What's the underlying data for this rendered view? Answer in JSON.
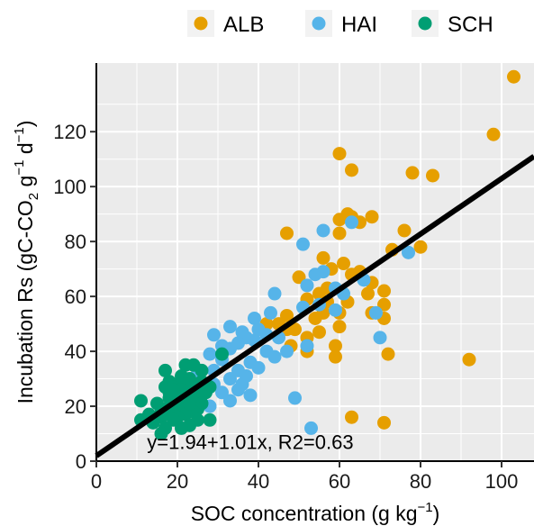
{
  "chart_data": {
    "type": "scatter",
    "xlabel": "SOC concentration (g kg",
    "xlabel_sup": "−1",
    "xlabel_end": ")",
    "ylabel": "Incubation Rs (gC-CO",
    "ylabel_sub": "2",
    "ylabel_mid1": " g",
    "ylabel_sup1": "−1",
    "ylabel_mid2": " d",
    "ylabel_sup2": "−1",
    "ylabel_end": ")",
    "xlim": [
      0,
      108
    ],
    "ylim": [
      0,
      145
    ],
    "xticks": [
      0,
      20,
      40,
      60,
      80,
      100
    ],
    "yticks": [
      0,
      20,
      40,
      60,
      80,
      100,
      120
    ],
    "grid": true,
    "legend_position": "top",
    "annotation": "y=1.94+1.01x, R2=0.63",
    "fit": {
      "intercept": 1.94,
      "slope": 1.01,
      "color": "#000000"
    },
    "series": [
      {
        "name": "ALB",
        "color": "#E69F00",
        "points": [
          [
            103,
            140
          ],
          [
            98,
            119
          ],
          [
            60,
            112
          ],
          [
            63,
            106
          ],
          [
            78,
            105
          ],
          [
            83,
            104
          ],
          [
            62,
            90
          ],
          [
            63,
            89
          ],
          [
            68,
            89
          ],
          [
            60,
            88
          ],
          [
            65,
            87
          ],
          [
            76,
            84
          ],
          [
            60,
            83
          ],
          [
            47,
            83
          ],
          [
            73,
            77
          ],
          [
            80,
            78
          ],
          [
            56,
            74
          ],
          [
            61,
            72
          ],
          [
            65,
            69
          ],
          [
            58,
            70
          ],
          [
            63,
            68
          ],
          [
            50,
            67
          ],
          [
            68,
            65
          ],
          [
            71,
            62
          ],
          [
            55,
            61
          ],
          [
            67,
            61
          ],
          [
            52,
            59
          ],
          [
            57,
            58
          ],
          [
            62,
            58
          ],
          [
            71,
            57
          ],
          [
            47,
            53
          ],
          [
            56,
            54
          ],
          [
            60,
            54
          ],
          [
            68,
            54
          ],
          [
            54,
            52
          ],
          [
            71,
            52
          ],
          [
            42,
            50
          ],
          [
            49,
            48
          ],
          [
            60,
            49
          ],
          [
            55,
            47
          ],
          [
            52,
            45
          ],
          [
            48,
            42
          ],
          [
            59,
            42
          ],
          [
            52,
            40
          ],
          [
            72,
            39
          ],
          [
            59,
            38
          ],
          [
            92,
            37
          ],
          [
            47,
            48
          ],
          [
            63,
            16
          ],
          [
            71,
            14
          ],
          [
            45,
            50
          ],
          [
            57,
            63
          ]
        ]
      },
      {
        "name": "HAI",
        "color": "#56B4E9",
        "points": [
          [
            63,
            87
          ],
          [
            56,
            84
          ],
          [
            51,
            79
          ],
          [
            77,
            76
          ],
          [
            56,
            69
          ],
          [
            54,
            68
          ],
          [
            66,
            66
          ],
          [
            52,
            64
          ],
          [
            59,
            63
          ],
          [
            44,
            61
          ],
          [
            61,
            61
          ],
          [
            55,
            57
          ],
          [
            51,
            56
          ],
          [
            59,
            55
          ],
          [
            69,
            54
          ],
          [
            43,
            54
          ],
          [
            39,
            52
          ],
          [
            33,
            49
          ],
          [
            40,
            48
          ],
          [
            36,
            47
          ],
          [
            42,
            46
          ],
          [
            37,
            45
          ],
          [
            29,
            46
          ],
          [
            45,
            45
          ],
          [
            39,
            44
          ],
          [
            35,
            43
          ],
          [
            70,
            45
          ],
          [
            52,
            42
          ],
          [
            33,
            41
          ],
          [
            42,
            40
          ],
          [
            47,
            40
          ],
          [
            28,
            39
          ],
          [
            31,
            37
          ],
          [
            38,
            36
          ],
          [
            40,
            34
          ],
          [
            35,
            33
          ],
          [
            29,
            33
          ],
          [
            25,
            32
          ],
          [
            37,
            31
          ],
          [
            33,
            30
          ],
          [
            23,
            29
          ],
          [
            29,
            28
          ],
          [
            26,
            27
          ],
          [
            35,
            26
          ],
          [
            31,
            25
          ],
          [
            38,
            24
          ],
          [
            49,
            23
          ],
          [
            33,
            22
          ],
          [
            25,
            21
          ],
          [
            28,
            20
          ],
          [
            22,
            19
          ],
          [
            53,
            12
          ],
          [
            36,
            28
          ],
          [
            31,
            42
          ],
          [
            44,
            38
          ]
        ]
      },
      {
        "name": "SCH",
        "color": "#009E73",
        "points": [
          [
            31,
            39
          ],
          [
            22,
            35
          ],
          [
            24,
            35
          ],
          [
            17,
            33
          ],
          [
            26,
            33
          ],
          [
            21,
            31
          ],
          [
            23,
            30
          ],
          [
            18,
            29
          ],
          [
            26,
            29
          ],
          [
            20,
            28
          ],
          [
            22,
            28
          ],
          [
            17,
            27
          ],
          [
            19,
            27
          ],
          [
            24,
            27
          ],
          [
            28,
            27
          ],
          [
            20,
            26
          ],
          [
            21,
            26
          ],
          [
            25,
            26
          ],
          [
            18,
            25
          ],
          [
            27,
            25
          ],
          [
            19,
            24
          ],
          [
            23,
            24
          ],
          [
            26,
            24
          ],
          [
            18,
            23
          ],
          [
            21,
            23
          ],
          [
            11,
            22
          ],
          [
            20,
            22
          ],
          [
            24,
            22
          ],
          [
            15,
            21
          ],
          [
            19,
            21
          ],
          [
            26,
            21
          ],
          [
            22,
            20
          ],
          [
            17,
            19
          ],
          [
            21,
            19
          ],
          [
            25,
            19
          ],
          [
            16,
            18
          ],
          [
            20,
            18
          ],
          [
            24,
            18
          ],
          [
            13,
            17
          ],
          [
            18,
            17
          ],
          [
            22,
            17
          ],
          [
            16,
            16
          ],
          [
            20,
            16
          ],
          [
            11,
            15
          ],
          [
            19,
            15
          ],
          [
            25,
            15
          ],
          [
            28,
            15
          ],
          [
            14,
            14
          ],
          [
            23,
            13
          ],
          [
            17,
            12
          ],
          [
            21,
            12
          ],
          [
            16,
            10
          ],
          [
            19,
            26
          ],
          [
            23,
            21
          ]
        ]
      }
    ]
  }
}
